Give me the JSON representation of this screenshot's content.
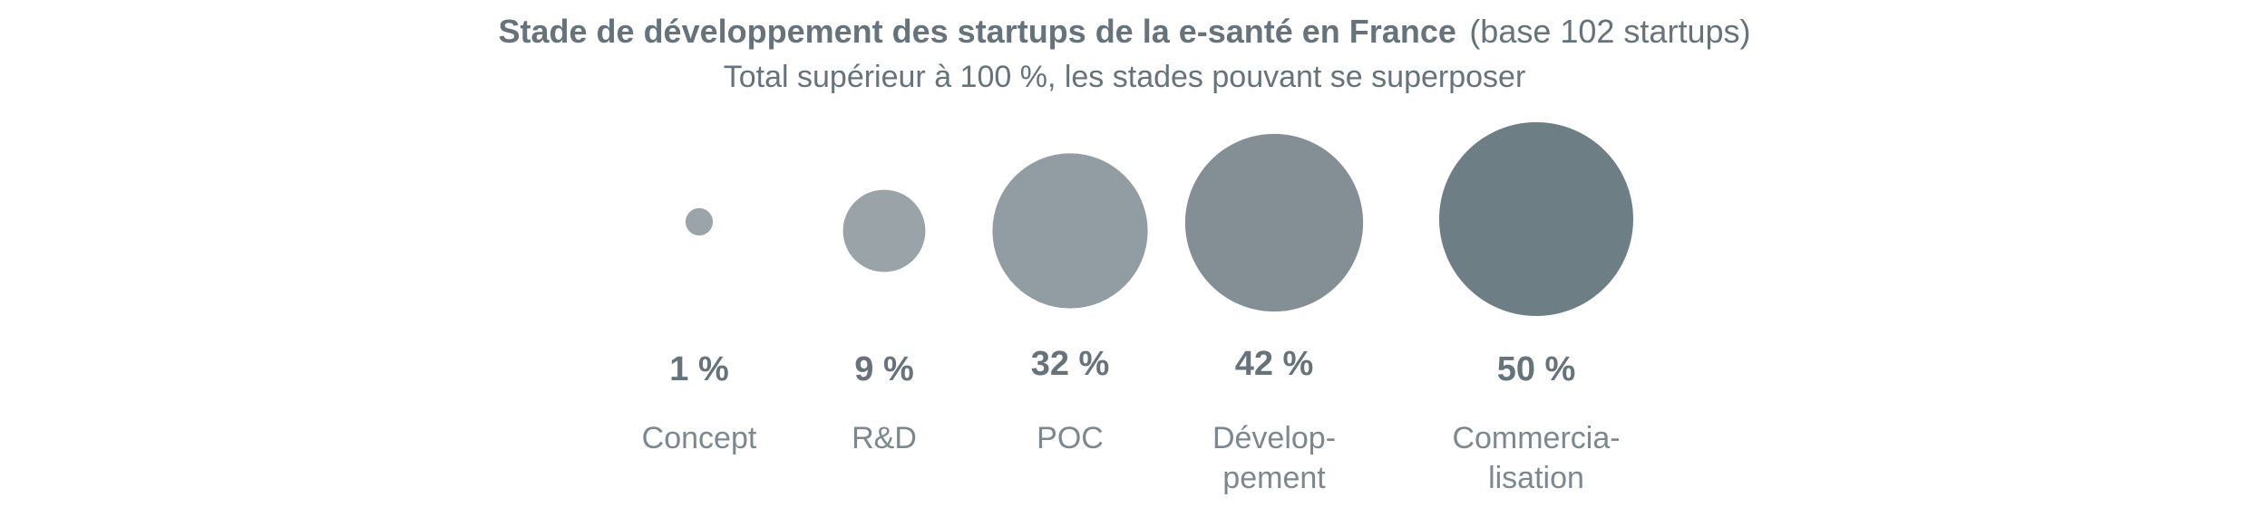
{
  "chart_data": {
    "type": "bubble",
    "title": "Stade de développement des startups de la e-santé en France",
    "title_suffix": "(base 102 startups)",
    "subtitle": "Total supérieur à 100 %, les stades pouvant se superposer",
    "categories": [
      "Concept",
      "R&D",
      "POC",
      "Dévelop-pement",
      "Commercia-lisation"
    ],
    "category_lines": [
      [
        "Concept"
      ],
      [
        "R&D"
      ],
      [
        "POC"
      ],
      [
        "Dévelop-",
        "pement"
      ],
      [
        "Commercia-",
        "lisation"
      ]
    ],
    "values": [
      1,
      9,
      32,
      42,
      50
    ],
    "value_labels": [
      "1 %",
      "9 %",
      "32 %",
      "42 %",
      "50 %"
    ],
    "unit": "%",
    "colors": [
      "#9ba4a9",
      "#9aa3a8",
      "#929da3",
      "#848f95",
      "#6e7e85"
    ]
  }
}
